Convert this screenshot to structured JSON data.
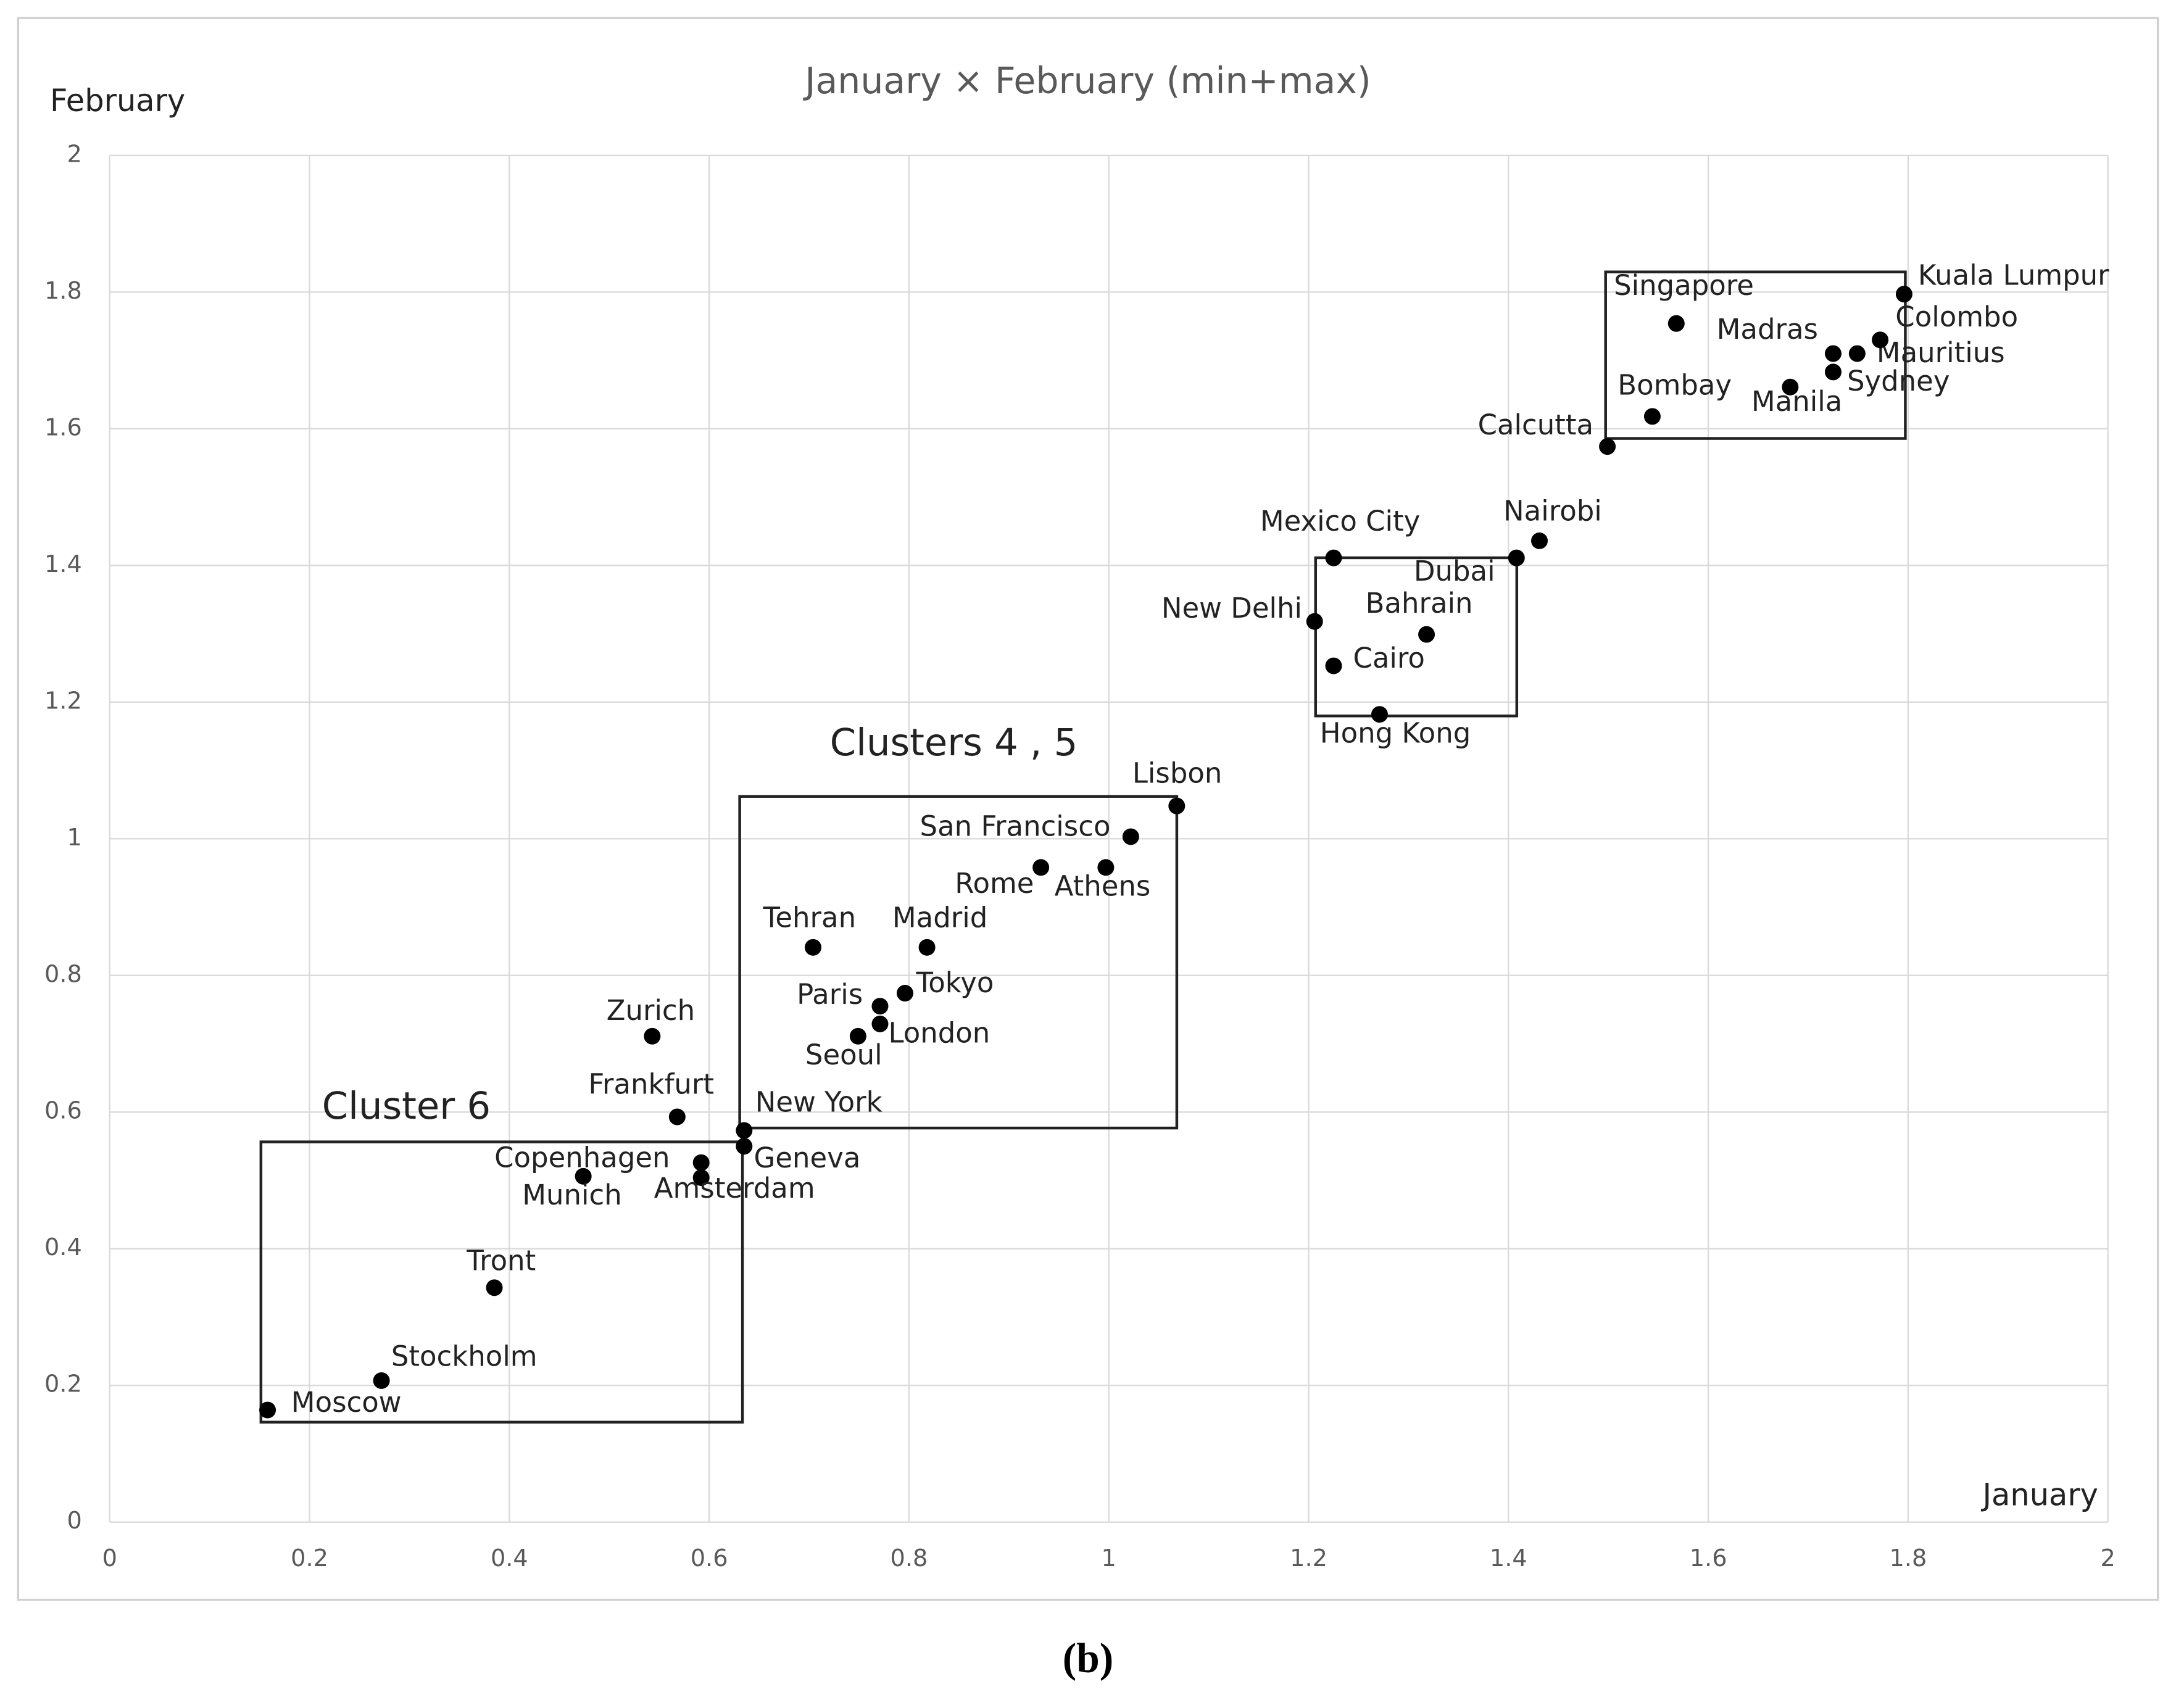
{
  "chart_data": {
    "type": "scatter",
    "title": "January × February (min+max)",
    "x_label": "January",
    "y_label": "February",
    "caption": "(b)",
    "annotations": [
      "Cluster 6",
      "Clusters 4 , 5"
    ],
    "color": "#000000",
    "grid": true,
    "xlim": [
      0,
      2
    ],
    "ylim": [
      0,
      2
    ],
    "xticks": [
      0,
      0.2,
      0.4,
      0.6,
      0.8,
      1,
      1.2,
      1.4,
      1.6,
      1.8,
      2
    ],
    "yticks": [
      0,
      0.2,
      0.4,
      0.6,
      0.8,
      1,
      1.2,
      1.4,
      1.6,
      1.8,
      2
    ],
    "labels": [
      "Moscow",
      "Stockholm",
      "Tront",
      "Munich",
      "Copenhagen",
      "Amsterdam",
      "Frankfurt",
      "Zurich",
      "New York",
      "Geneva",
      "Seoul",
      "London",
      "Paris",
      "Tokyo",
      "Tehran",
      "Madrid",
      "Rome",
      "Athens",
      "San Francisco",
      "Lisbon",
      "Hong Kong",
      "Cairo",
      "New Delhi",
      "Bahrain",
      "Mexico City",
      "Dubai",
      "Nairobi",
      "Calcutta",
      "Bombay",
      "Singapore",
      "Manila",
      "Sydney",
      "Madras",
      "Mauritius",
      "Colombo",
      "Kuala Lumpur"
    ],
    "x": [
      0.158,
      0.272,
      0.385,
      0.474,
      0.592,
      0.592,
      0.568,
      0.543,
      0.635,
      0.635,
      0.749,
      0.771,
      0.771,
      0.796,
      0.704,
      0.818,
      0.932,
      0.997,
      1.022,
      1.068,
      1.271,
      1.225,
      1.206,
      1.318,
      1.225,
      1.408,
      1.431,
      1.499,
      1.544,
      1.568,
      1.682,
      1.725,
      1.725,
      1.749,
      1.772,
      1.796
    ],
    "values": [
      0.164,
      0.207,
      0.343,
      0.506,
      0.526,
      0.504,
      0.593,
      0.711,
      0.573,
      0.55,
      0.711,
      0.729,
      0.755,
      0.774,
      0.841,
      0.841,
      0.958,
      0.958,
      1.003,
      1.048,
      1.182,
      1.253,
      1.318,
      1.299,
      1.411,
      1.411,
      1.436,
      1.574,
      1.618,
      1.754,
      1.661,
      1.683,
      1.71,
      1.71,
      1.73,
      1.797
    ]
  }
}
